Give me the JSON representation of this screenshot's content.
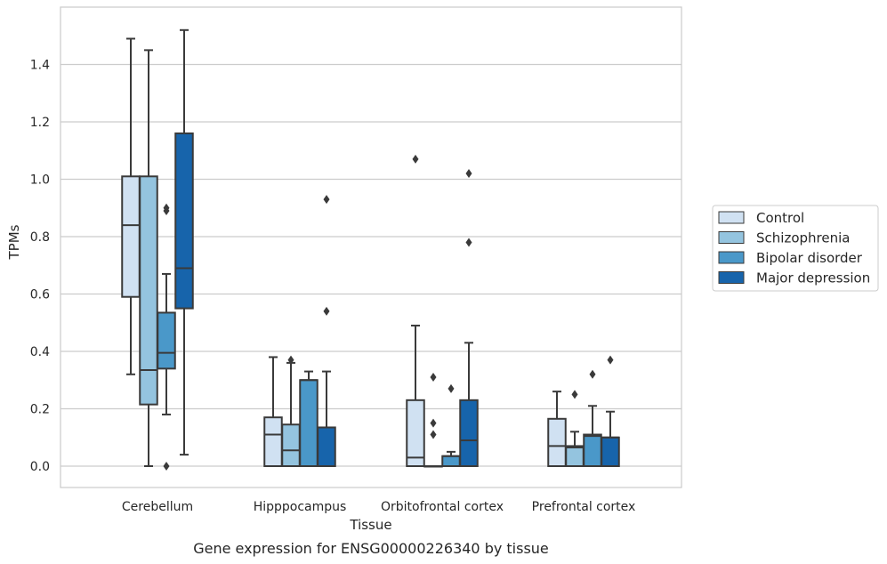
{
  "chart_data": {
    "type": "box",
    "xlabel": "Tissue",
    "ylabel": "TPMs",
    "caption": "Gene expression for ENSG00000226340 by tissue",
    "ylim": [
      -0.07,
      1.6
    ],
    "yticks": [
      "0.0",
      "0.2",
      "0.4",
      "0.6",
      "0.8",
      "1.0",
      "1.2",
      "1.4"
    ],
    "grid": "horizontal",
    "legend_position": "right",
    "categories": [
      "Cerebellum",
      "Hipppocampus",
      "Orbitofrontal cortex",
      "Prefrontal cortex"
    ],
    "series": [
      {
        "name": "Control",
        "color": "#d0e1f2",
        "boxes": [
          {
            "q1": 0.59,
            "median": 0.84,
            "q3": 1.01,
            "whisker_low": 0.32,
            "whisker_high": 1.49,
            "outliers": []
          },
          {
            "q1": 0.0,
            "median": 0.11,
            "q3": 0.17,
            "whisker_low": 0.0,
            "whisker_high": 0.38,
            "outliers": []
          },
          {
            "q1": 0.0,
            "median": 0.03,
            "q3": 0.23,
            "whisker_low": 0.0,
            "whisker_high": 0.49,
            "outliers": [
              1.07
            ]
          },
          {
            "q1": 0.0,
            "median": 0.07,
            "q3": 0.165,
            "whisker_low": 0.0,
            "whisker_high": 0.26,
            "outliers": []
          }
        ]
      },
      {
        "name": "Schizophrenia",
        "color": "#94c4df",
        "boxes": [
          {
            "q1": 0.215,
            "median": 0.335,
            "q3": 1.01,
            "whisker_low": 0.0,
            "whisker_high": 1.45,
            "outliers": []
          },
          {
            "q1": 0.0,
            "median": 0.055,
            "q3": 0.145,
            "whisker_low": 0.0,
            "whisker_high": 0.36,
            "outliers": [
              0.37
            ]
          },
          {
            "q1": 0.0,
            "median": 0.0,
            "q3": 0.0,
            "whisker_low": 0.0,
            "whisker_high": 0.0,
            "outliers": [
              0.31,
              0.15,
              0.11
            ]
          },
          {
            "q1": 0.0,
            "median": 0.065,
            "q3": 0.07,
            "whisker_low": 0.0,
            "whisker_high": 0.12,
            "outliers": [
              0.25
            ]
          }
        ]
      },
      {
        "name": "Bipolar disorder",
        "color": "#4a98c9",
        "boxes": [
          {
            "q1": 0.34,
            "median": 0.395,
            "q3": 0.535,
            "whisker_low": 0.18,
            "whisker_high": 0.67,
            "outliers": [
              0.9,
              0.89,
              0.0
            ]
          },
          {
            "q1": 0.0,
            "median": 0.3,
            "q3": 0.3,
            "whisker_low": 0.0,
            "whisker_high": 0.33,
            "outliers": []
          },
          {
            "q1": 0.0,
            "median": 0.035,
            "q3": 0.035,
            "whisker_low": 0.0,
            "whisker_high": 0.05,
            "outliers": [
              0.27
            ]
          },
          {
            "q1": 0.0,
            "median": 0.105,
            "q3": 0.11,
            "whisker_low": 0.0,
            "whisker_high": 0.21,
            "outliers": [
              0.32
            ]
          }
        ]
      },
      {
        "name": "Major depression",
        "color": "#1764ab",
        "boxes": [
          {
            "q1": 0.55,
            "median": 0.69,
            "q3": 1.16,
            "whisker_low": 0.04,
            "whisker_high": 1.52,
            "outliers": []
          },
          {
            "q1": 0.0,
            "median": 0.135,
            "q3": 0.135,
            "whisker_low": 0.0,
            "whisker_high": 0.33,
            "outliers": [
              0.93,
              0.54
            ]
          },
          {
            "q1": 0.0,
            "median": 0.09,
            "q3": 0.23,
            "whisker_low": 0.0,
            "whisker_high": 0.43,
            "outliers": [
              1.02,
              0.78
            ]
          },
          {
            "q1": 0.0,
            "median": 0.1,
            "q3": 0.1,
            "whisker_low": 0.0,
            "whisker_high": 0.19,
            "outliers": [
              0.37
            ]
          }
        ]
      }
    ]
  }
}
